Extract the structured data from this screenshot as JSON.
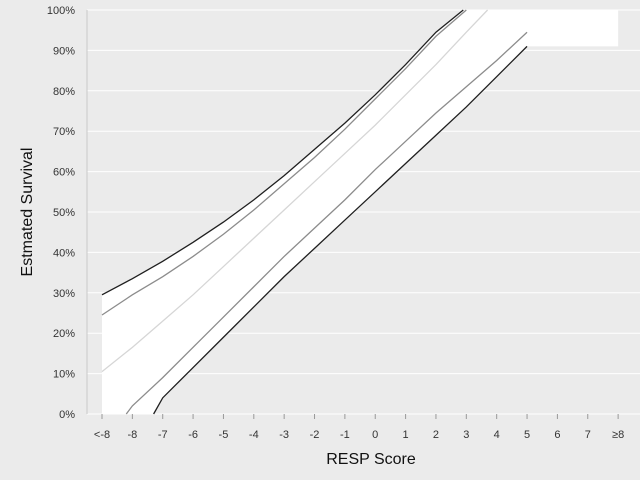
{
  "chart_data": {
    "type": "line",
    "xlabel": "RESP Score",
    "ylabel": "Estmated Survival",
    "categories": [
      "<-8",
      "-8",
      "-7",
      "-6",
      "-5",
      "-4",
      "-3",
      "-2",
      "-1",
      "0",
      "1",
      "2",
      "3",
      "4",
      "5",
      "6",
      "7",
      "≥8"
    ],
    "x_numeric": [
      -9,
      -8,
      -7,
      -6,
      -5,
      -4,
      -3,
      -2,
      -1,
      0,
      1,
      2,
      3,
      4,
      5,
      6,
      7,
      8
    ],
    "y_ticks": [
      "0%",
      "10%",
      "20%",
      "30%",
      "40%",
      "50%",
      "60%",
      "70%",
      "80%",
      "90%",
      "100%"
    ],
    "ylim": [
      0,
      100
    ],
    "grid": "horizontal",
    "background": "#ebebeb",
    "band_fill": "#ffffff",
    "series": [
      {
        "values": [
          29.5,
          33.5,
          37.8,
          42.5,
          47.5,
          53.0,
          59.0,
          65.5,
          72.0,
          79.0,
          86.5,
          94.5,
          101.5
        ],
        "x": [
          -9,
          -8,
          -7,
          -6,
          -5,
          -4,
          -3,
          -2,
          -1,
          0,
          1,
          2,
          2.9
        ],
        "color": "#1f1f1f"
      },
      {
        "values": [
          24.5,
          29.5,
          34.0,
          39.0,
          44.5,
          50.5,
          57.0,
          63.5,
          70.5,
          78.0,
          85.5,
          93.5,
          101.0
        ],
        "x": [
          -9,
          -8,
          -7,
          -6,
          -5,
          -4,
          -3,
          -2,
          -1,
          0,
          1,
          2,
          3
        ],
        "color": "#8c8c8c"
      },
      {
        "values": [
          10.5,
          16.5,
          23.0,
          29.5,
          36.5,
          43.5,
          50.5,
          57.5,
          64.5,
          71.5,
          79.0,
          86.5,
          94.5,
          100.5
        ],
        "x": [
          -9,
          -8,
          -7,
          -6,
          -5,
          -4,
          -3,
          -2,
          -1,
          0,
          1,
          2,
          3,
          3.7
        ],
        "color": "#d6d6d6"
      },
      {
        "values": [
          0,
          2.0,
          9.0,
          16.5,
          24.0,
          31.5,
          39.0,
          46.0,
          53.0,
          60.5,
          67.5,
          74.5,
          81.0,
          87.5,
          94.5
        ],
        "x": [
          -8.2,
          -8,
          -7,
          -6,
          -5,
          -4,
          -3,
          -2,
          -1,
          0,
          1,
          2,
          3,
          4,
          5
        ],
        "color": "#8c8c8c"
      },
      {
        "values": [
          0,
          4.0,
          11.5,
          19.0,
          26.5,
          34.0,
          41.0,
          48.0,
          55.0,
          62.0,
          69.0,
          76.0,
          83.5,
          91.0
        ],
        "x": [
          -7.3,
          -7,
          -6,
          -5,
          -4,
          -3,
          -2,
          -1,
          0,
          1,
          2,
          3,
          4,
          5
        ],
        "color": "#1f1f1f"
      }
    ]
  }
}
